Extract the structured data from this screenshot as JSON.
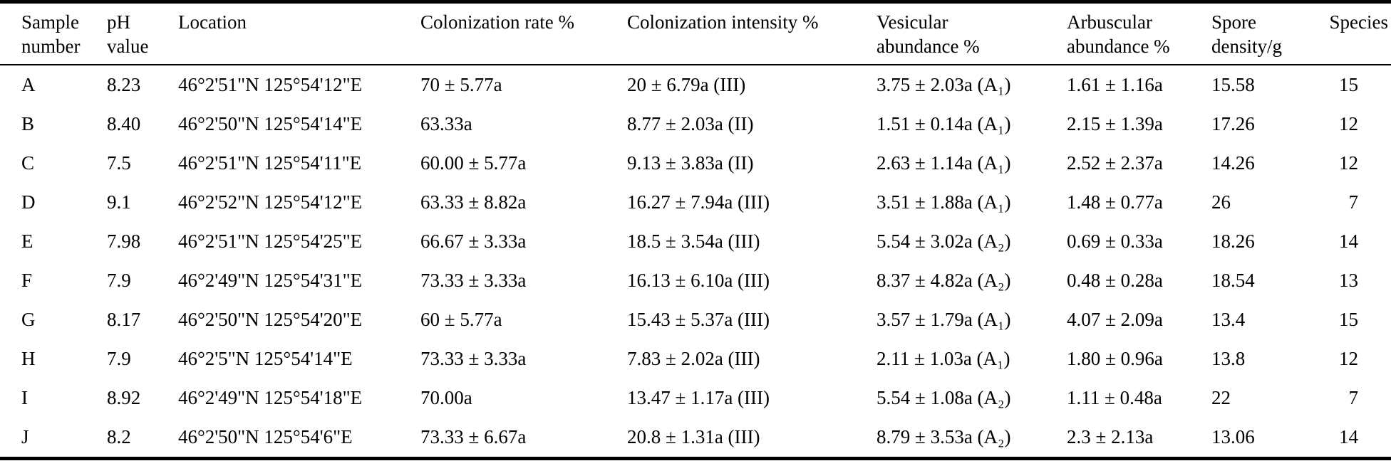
{
  "table": {
    "columns": [
      "Sample\nnumber",
      "pH\nvalue",
      "Location",
      "Colonization rate %",
      "Colonization intensity %",
      "Vesicular\nabundance %",
      "Arbuscular\nabundance %",
      "Spore\ndensity/g",
      "Species"
    ],
    "rows": [
      [
        "A",
        "8.23",
        "46°2'51\"N 125°54'12\"E",
        "70 ± 5.77a",
        "20 ± 6.79a (III)",
        "3.75 ± 2.03a (A₁)",
        "1.61 ± 1.16a",
        "15.58",
        "15"
      ],
      [
        "B",
        "8.40",
        "46°2'50\"N 125°54'14\"E",
        "63.33a",
        "8.77 ± 2.03a (II)",
        "1.51 ± 0.14a (A₁)",
        "2.15 ± 1.39a",
        "17.26",
        "12"
      ],
      [
        "C",
        "7.5",
        "46°2'51\"N 125°54'11\"E",
        "60.00 ± 5.77a",
        "9.13 ± 3.83a (II)",
        "2.63 ± 1.14a (A₁)",
        "2.52 ± 2.37a",
        "14.26",
        "12"
      ],
      [
        "D",
        "9.1",
        "46°2'52\"N 125°54'12\"E",
        "63.33 ± 8.82a",
        "16.27 ± 7.94a (III)",
        "3.51 ± 1.88a (A₁)",
        "1.48 ± 0.77a",
        "26",
        "7"
      ],
      [
        "E",
        "7.98",
        "46°2'51\"N 125°54'25\"E",
        "66.67 ± 3.33a",
        "18.5 ± 3.54a (III)",
        "5.54 ± 3.02a (A₂)",
        "0.69 ± 0.33a",
        "18.26",
        "14"
      ],
      [
        "F",
        "7.9",
        "46°2'49\"N 125°54'31\"E",
        "73.33 ± 3.33a",
        "16.13 ± 6.10a (III)",
        "8.37 ± 4.82a (A₂)",
        "0.48 ± 0.28a",
        "18.54",
        "13"
      ],
      [
        "G",
        "8.17",
        "46°2'50\"N 125°54'20\"E",
        "60 ± 5.77a",
        "15.43 ± 5.37a (III)",
        "3.57 ± 1.79a (A₁)",
        "4.07 ± 2.09a",
        "13.4",
        "15"
      ],
      [
        "H",
        "7.9",
        "46°2'5\"N 125°54'14\"E",
        "73.33 ± 3.33a",
        "7.83 ± 2.02a (III)",
        "2.11 ± 1.03a (A₁)",
        "1.80 ± 0.96a",
        "13.8",
        "12"
      ],
      [
        "I",
        "8.92",
        "46°2'49\"N 125°54'18\"E",
        "70.00a",
        "13.47 ± 1.17a (III)",
        "5.54 ± 1.08a (A₂)",
        "1.11 ± 0.48a",
        "22",
        "7"
      ],
      [
        "J",
        "8.2",
        "46°2'50\"N 125°54'6\"E",
        "73.33 ± 6.67a",
        "20.8 ± 1.31a (III)",
        "8.79 ± 3.53a (A₂)",
        "2.3 ± 2.13a",
        "13.06",
        "14"
      ]
    ]
  }
}
